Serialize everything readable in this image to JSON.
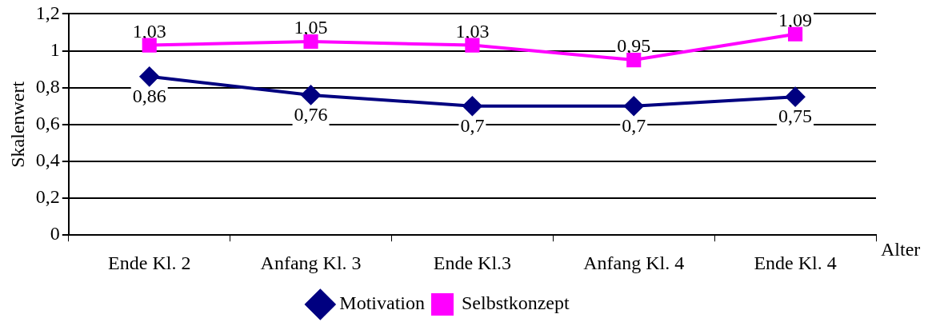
{
  "chart_data": {
    "type": "line",
    "xlabel": "Alter",
    "ylabel": "Skalenwert",
    "categories": [
      "Ende Kl. 2",
      "Anfang Kl. 3",
      "Ende Kl.3",
      "Anfang Kl. 4",
      "Ende Kl. 4"
    ],
    "series": [
      {
        "name": "Motivation",
        "color": "#000080",
        "marker": "diamond",
        "values": [
          0.86,
          0.76,
          0.7,
          0.7,
          0.75
        ],
        "value_labels": [
          "0,86",
          "0,76",
          "0,7",
          "0,7",
          "0,75"
        ]
      },
      {
        "name": "Selbstkonzept",
        "color": "#ff00ff",
        "marker": "square",
        "values": [
          1.03,
          1.05,
          1.03,
          0.95,
          1.09
        ],
        "value_labels": [
          "1,03",
          "1,05",
          "1,03",
          "0,95",
          "1,09"
        ]
      }
    ],
    "ylim": [
      0,
      1.2
    ],
    "yticks": [
      0,
      {
        "value": 0.2,
        "label": "0,2"
      },
      {
        "value": 0.4,
        "label": "0,4"
      },
      {
        "value": 0.6,
        "label": "0,6"
      },
      {
        "value": 0.8,
        "label": "0,8"
      },
      1,
      {
        "value": 1.2,
        "label": "1,2"
      }
    ],
    "grid": "y",
    "legend": "bottom",
    "line_style": "solid"
  }
}
